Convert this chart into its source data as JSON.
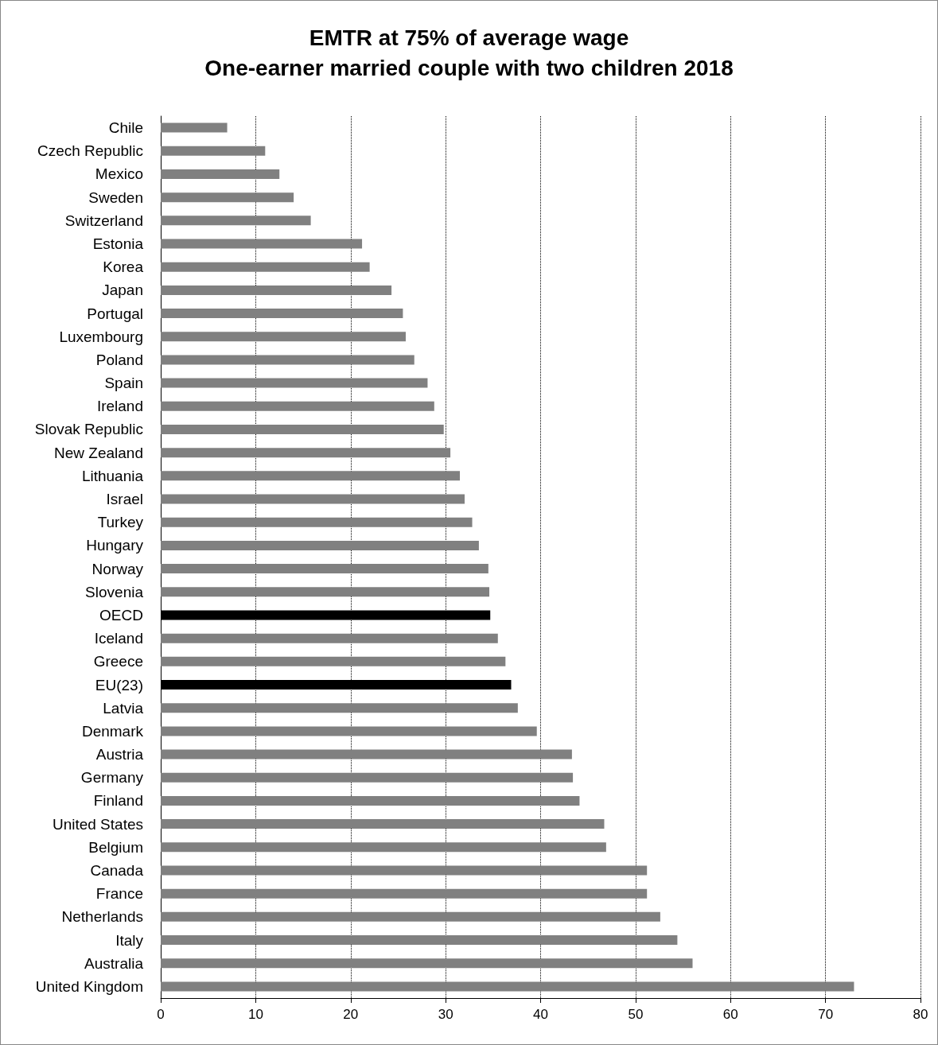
{
  "chart_data": {
    "type": "bar",
    "orientation": "horizontal",
    "title": "EMTR at 75% of average wage\nOne-earner married couple with two children 2018",
    "categories": [
      "Chile",
      "Czech Republic",
      "Mexico",
      "Sweden",
      "Switzerland",
      "Estonia",
      "Korea",
      "Japan",
      "Portugal",
      "Luxembourg",
      "Poland",
      "Spain",
      "Ireland",
      "Slovak Republic",
      "New Zealand",
      "Lithuania",
      "Israel",
      "Turkey",
      "Hungary",
      "Norway",
      "Slovenia",
      "OECD",
      "Iceland",
      "Greece",
      "EU(23)",
      "Latvia",
      "Denmark",
      "Austria",
      "Germany",
      "Finland",
      "United States",
      "Belgium",
      "Canada",
      "France",
      "Netherlands",
      "Italy",
      "Australia",
      "United Kingdom"
    ],
    "values": [
      7.0,
      11.0,
      12.5,
      14.0,
      15.8,
      21.2,
      22.0,
      24.3,
      25.5,
      25.8,
      26.7,
      28.1,
      28.8,
      29.8,
      30.5,
      31.5,
      32.0,
      32.8,
      33.5,
      34.5,
      34.6,
      34.7,
      35.5,
      36.3,
      36.9,
      37.6,
      39.6,
      43.3,
      43.4,
      44.1,
      46.7,
      46.9,
      51.2,
      51.2,
      52.6,
      54.4,
      56.0,
      73.0
    ],
    "colors": [
      "#808080",
      "#808080",
      "#808080",
      "#808080",
      "#808080",
      "#808080",
      "#808080",
      "#808080",
      "#808080",
      "#808080",
      "#808080",
      "#808080",
      "#808080",
      "#808080",
      "#808080",
      "#808080",
      "#808080",
      "#808080",
      "#808080",
      "#808080",
      "#808080",
      "#000000",
      "#808080",
      "#808080",
      "#000000",
      "#808080",
      "#808080",
      "#808080",
      "#808080",
      "#808080",
      "#808080",
      "#808080",
      "#808080",
      "#808080",
      "#808080",
      "#808080",
      "#808080",
      "#808080"
    ],
    "xlim": [
      0,
      80
    ],
    "xticks": [
      0,
      10,
      20,
      30,
      40,
      50,
      60,
      70,
      80
    ],
    "grid": "x"
  }
}
